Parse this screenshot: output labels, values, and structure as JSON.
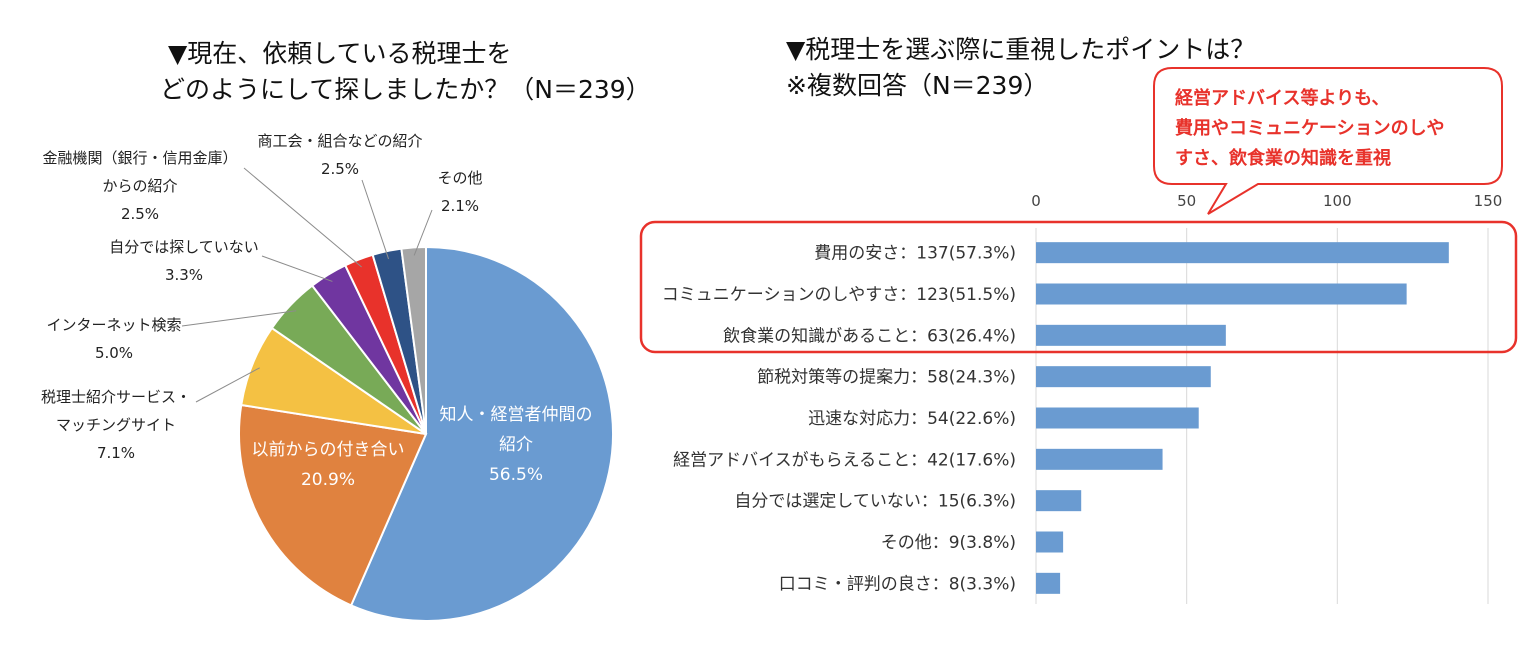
{
  "pie_title": [
    "▼現在、依頼している税理士を",
    "どのようにして探しましたか？（N＝239）"
  ],
  "bar_title": [
    "▼税理士を選ぶ際に重視したポイントは？",
    "※複数回答（N＝239）"
  ],
  "callout": [
    "経営アドバイス等よりも、",
    "費用やコミュニケーションのしや",
    "すさ、飲食業の知識を重視"
  ],
  "colors": {
    "pie": [
      "#6a9bd1",
      "#e0823f",
      "#f4c143",
      "#78aa57",
      "#7036a0",
      "#e8322b",
      "#2e5286",
      "#a6a6a6"
    ],
    "bar": "#6a9bd1",
    "highlight": "#e8322b"
  },
  "chart_data": [
    {
      "type": "pie",
      "slices": [
        {
          "name_lines": [
            "知人・経営者仲間の",
            "紹介"
          ],
          "value": 56.5,
          "pct_label": "56.5%",
          "label_position": "inside"
        },
        {
          "name_lines": [
            "以前からの付き合い"
          ],
          "value": 20.9,
          "pct_label": "20.9%",
          "label_position": "inside"
        },
        {
          "name_lines": [
            "税理士紹介サービス・",
            "マッチングサイト"
          ],
          "value": 7.1,
          "pct_label": "7.1%",
          "label_position": "outside"
        },
        {
          "name_lines": [
            "インターネット検索"
          ],
          "value": 5.0,
          "pct_label": "5.0%",
          "label_position": "outside"
        },
        {
          "name_lines": [
            "自分では探していない"
          ],
          "value": 3.3,
          "pct_label": "3.3%",
          "label_position": "outside"
        },
        {
          "name_lines": [
            "金融機関（銀行・信用金庫）",
            "からの紹介"
          ],
          "value": 2.5,
          "pct_label": "2.5%",
          "label_position": "outside"
        },
        {
          "name_lines": [
            "商工会・組合などの紹介"
          ],
          "value": 2.5,
          "pct_label": "2.5%",
          "label_position": "outside"
        },
        {
          "name_lines": [
            "その他"
          ],
          "value": 2.1,
          "pct_label": "2.1%",
          "label_position": "outside"
        }
      ]
    },
    {
      "type": "bar",
      "orientation": "horizontal",
      "categories": [
        "費用の安さ：137(57.3%)",
        "コミュニケーションのしやすさ：123(51.5%)",
        "飲食業の知識があること：63(26.4%)",
        "節税対策等の提案力：58(24.3%)",
        "迅速な対応力：54(22.6%)",
        "経営アドバイスがもらえること：42(17.6%)",
        "自分では選定していない：15(6.3%)",
        "その他：9(3.8%)",
        "口コミ・評判の良さ：8(3.3%)"
      ],
      "values": [
        137,
        123,
        63,
        58,
        54,
        42,
        15,
        9,
        8
      ],
      "xlim": [
        0,
        150
      ],
      "xticks": [
        0,
        50,
        100,
        150
      ],
      "grid": true,
      "highlighted_categories": 3
    }
  ]
}
